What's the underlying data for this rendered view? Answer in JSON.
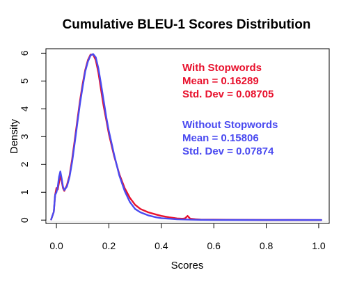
{
  "chart_data": {
    "type": "line",
    "title": "Cumulative BLEU-1 Scores Distribution",
    "xlabel": "Scores",
    "ylabel": "Density",
    "xlim": [
      -0.04,
      1.04
    ],
    "ylim": [
      -0.12,
      6.16
    ],
    "x_ticks": [
      "0.0",
      "0.2",
      "0.4",
      "0.6",
      "0.8",
      "1.0"
    ],
    "y_ticks": [
      "0",
      "1",
      "2",
      "3",
      "4",
      "5",
      "6"
    ],
    "grid": false,
    "legend_position": "top-right",
    "series": [
      {
        "name": "With Stopwords",
        "color": "#e8112d",
        "stats": [
          "Mean = 0.16289",
          "Std. Dev = 0.08705"
        ],
        "x": [
          -0.02,
          -0.01,
          -0.005,
          0.0,
          0.005,
          0.01,
          0.015,
          0.02,
          0.025,
          0.03,
          0.04,
          0.05,
          0.06,
          0.07,
          0.08,
          0.09,
          0.1,
          0.11,
          0.12,
          0.13,
          0.14,
          0.15,
          0.16,
          0.17,
          0.18,
          0.19,
          0.2,
          0.22,
          0.24,
          0.26,
          0.28,
          0.3,
          0.32,
          0.35,
          0.38,
          0.4,
          0.43,
          0.46,
          0.48,
          0.49,
          0.5,
          0.51,
          0.53,
          0.55,
          0.6,
          0.7,
          0.8,
          0.9,
          1.0,
          1.01
        ],
        "y": [
          0.02,
          0.3,
          0.9,
          1.15,
          1.1,
          1.35,
          1.6,
          1.4,
          1.15,
          1.05,
          1.25,
          1.6,
          2.2,
          2.9,
          3.6,
          4.3,
          4.9,
          5.4,
          5.75,
          5.95,
          5.95,
          5.75,
          5.3,
          4.7,
          4.1,
          3.6,
          3.1,
          2.3,
          1.65,
          1.15,
          0.8,
          0.55,
          0.4,
          0.28,
          0.2,
          0.15,
          0.1,
          0.06,
          0.05,
          0.06,
          0.15,
          0.05,
          0.03,
          0.02,
          0.015,
          0.01,
          0.005,
          0.005,
          0.003,
          0.003
        ]
      },
      {
        "name": "Without Stopwords",
        "color": "#4a4af0",
        "stats": [
          "Mean = 0.15806",
          "Std. Dev = 0.07874"
        ],
        "x": [
          -0.02,
          -0.01,
          -0.005,
          0.0,
          0.005,
          0.01,
          0.015,
          0.02,
          0.025,
          0.03,
          0.04,
          0.05,
          0.06,
          0.07,
          0.08,
          0.09,
          0.1,
          0.11,
          0.12,
          0.13,
          0.14,
          0.15,
          0.16,
          0.17,
          0.18,
          0.19,
          0.2,
          0.22,
          0.24,
          0.26,
          0.28,
          0.3,
          0.32,
          0.35,
          0.38,
          0.4,
          0.43,
          0.46,
          0.5,
          0.55,
          0.6,
          0.7,
          0.8,
          0.9,
          1.0,
          1.01
        ],
        "y": [
          0.02,
          0.3,
          0.9,
          1.0,
          1.2,
          1.55,
          1.75,
          1.5,
          1.2,
          1.08,
          1.2,
          1.55,
          2.1,
          2.8,
          3.5,
          4.2,
          4.8,
          5.35,
          5.7,
          5.92,
          5.97,
          5.85,
          5.45,
          4.9,
          4.3,
          3.7,
          3.2,
          2.35,
          1.6,
          1.05,
          0.65,
          0.4,
          0.28,
          0.17,
          0.1,
          0.07,
          0.05,
          0.03,
          0.02,
          0.01,
          0.008,
          0.005,
          0.003,
          0.003,
          0.002,
          0.002
        ]
      }
    ]
  }
}
